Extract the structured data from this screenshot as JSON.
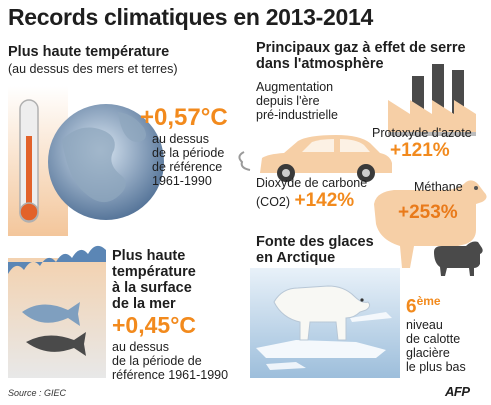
{
  "title": "Records climatiques en 2013-2014",
  "land": {
    "heading": "Plus haute température",
    "subheading": "(au dessus des mers et terres)",
    "value": "+0,57°C",
    "desc": [
      "au dessus",
      "de la période",
      "de référence",
      "1961-1990"
    ]
  },
  "gases": {
    "heading": [
      "Principaux gaz à effet de serre",
      "dans l'atmosphère"
    ],
    "intro": [
      "Augmentation",
      "depuis l'ère",
      "pré-industrielle"
    ],
    "n2o_label": "Protoxyde d'azote",
    "n2o_value": "+121%",
    "co2_label_1": "Dioxyde de carbone",
    "co2_label_2": "(CO2)",
    "co2_value": "+142%",
    "ch4_label": "Méthane",
    "ch4_value": "+253%"
  },
  "sea": {
    "heading": [
      "Plus haute",
      "température",
      "à la surface",
      "de la mer"
    ],
    "value": "+0,45°C",
    "desc": [
      "au dessus",
      "de la période de",
      "référence 1961-1990"
    ]
  },
  "ice": {
    "heading": [
      "Fonte des glaces",
      "en Arctique"
    ],
    "rank": "6",
    "rank_suffix": "ème",
    "desc": [
      "niveau",
      "de calotte",
      "glacière",
      "le plus bas"
    ]
  },
  "source": "Source : GIEC",
  "brand": "AFP",
  "colors": {
    "accent": "#f28a1d",
    "light_orange": "#f6d9bd",
    "ocean_blue": "#7f9fbf",
    "ice_blue": "#cfe0ef"
  }
}
